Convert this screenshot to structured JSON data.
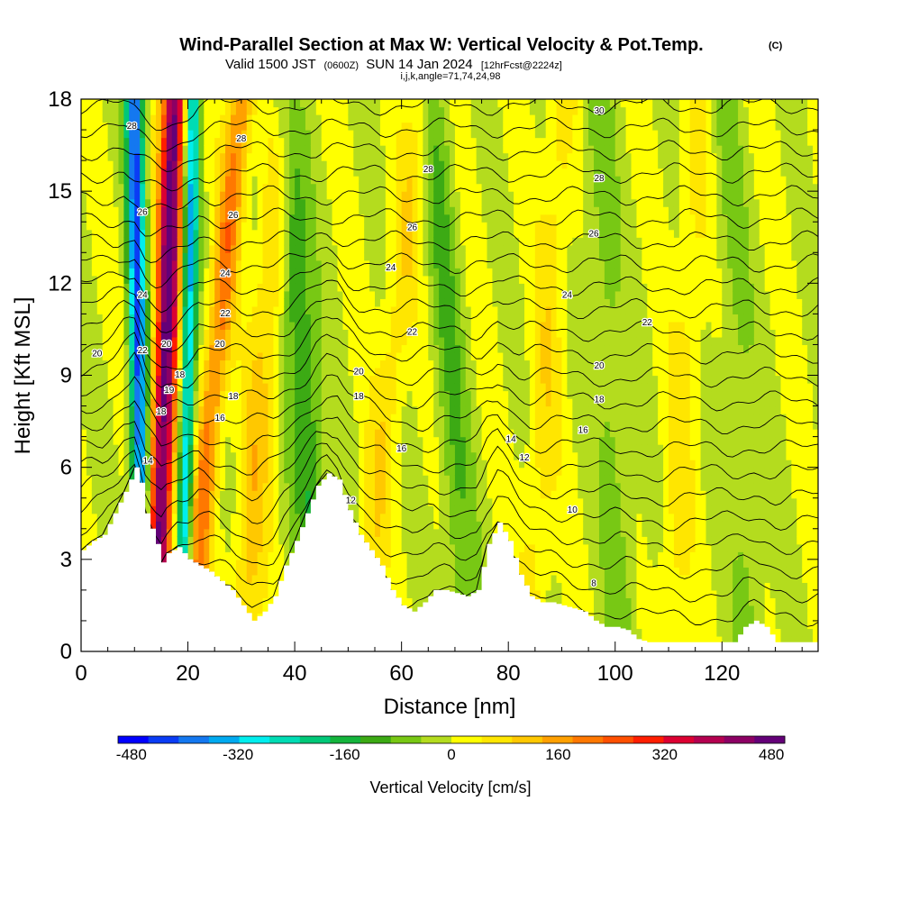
{
  "title": {
    "main": "Wind-Parallel Section at Max W: Vertical Velocity & Pot.Temp.",
    "main_suffix": "(C)",
    "valid_prefix": "Valid 1500 JST",
    "valid_utc": "(0600Z)",
    "valid_date": "SUN 14 Jan 2024",
    "forecast": "[12hrFcst@2224z]",
    "indices": "i,j,k,angle=71,74,24,98"
  },
  "chart_data": {
    "type": "heatmap",
    "xlabel": "Distance [nm]",
    "ylabel": "Height [Kft MSL]",
    "xlim": [
      0,
      138
    ],
    "ylim": [
      0,
      18
    ],
    "x_ticks": [
      0,
      20,
      40,
      60,
      80,
      100,
      120
    ],
    "y_ticks": [
      0,
      3,
      6,
      9,
      12,
      15,
      18
    ],
    "colorbar": {
      "label": "Vertical Velocity [cm/s]",
      "min": -500,
      "max": 500,
      "tick_labels": [
        "-480",
        "-320",
        "-160",
        "0",
        "160",
        "320",
        "480"
      ],
      "tick_values": [
        -480,
        -320,
        -160,
        0,
        160,
        320,
        480
      ],
      "colors": [
        "#0000ff",
        "#0a3cf5",
        "#1478f0",
        "#00aaf0",
        "#00eeee",
        "#00dcb4",
        "#00c878",
        "#14b43c",
        "#3caa14",
        "#78c814",
        "#b4dc1e",
        "#ffff00",
        "#ffe600",
        "#ffc800",
        "#ffa000",
        "#ff7800",
        "#ff5000",
        "#ff1e00",
        "#dc0032",
        "#b40050",
        "#8c0064",
        "#640078"
      ]
    },
    "terrain_profile": [
      [
        0,
        3.3
      ],
      [
        2,
        3.6
      ],
      [
        4,
        3.8
      ],
      [
        6,
        4.5
      ],
      [
        8,
        5.2
      ],
      [
        10,
        6.0
      ],
      [
        11,
        5.5
      ],
      [
        12,
        4.5
      ],
      [
        13,
        4.0
      ],
      [
        14,
        3.5
      ],
      [
        15,
        2.9
      ],
      [
        16,
        3.2
      ],
      [
        18,
        3.4
      ],
      [
        20,
        3.0
      ],
      [
        22,
        2.8
      ],
      [
        24,
        2.6
      ],
      [
        26,
        2.3
      ],
      [
        28,
        2.0
      ],
      [
        30,
        1.5
      ],
      [
        32,
        1.0
      ],
      [
        34,
        1.3
      ],
      [
        36,
        1.8
      ],
      [
        38,
        2.8
      ],
      [
        40,
        3.6
      ],
      [
        42,
        4.5
      ],
      [
        44,
        5.4
      ],
      [
        46,
        5.8
      ],
      [
        48,
        5.6
      ],
      [
        50,
        4.6
      ],
      [
        52,
        3.8
      ],
      [
        54,
        3.3
      ],
      [
        56,
        2.8
      ],
      [
        58,
        2.0
      ],
      [
        60,
        1.5
      ],
      [
        62,
        1.3
      ],
      [
        64,
        1.6
      ],
      [
        66,
        2.0
      ],
      [
        68,
        2.0
      ],
      [
        70,
        1.9
      ],
      [
        72,
        1.8
      ],
      [
        74,
        2.0
      ],
      [
        76,
        3.5
      ],
      [
        78,
        4.2
      ],
      [
        80,
        3.6
      ],
      [
        82,
        2.5
      ],
      [
        84,
        1.8
      ],
      [
        86,
        1.6
      ],
      [
        88,
        1.6
      ],
      [
        90,
        1.5
      ],
      [
        92,
        1.4
      ],
      [
        94,
        1.3
      ],
      [
        96,
        1.0
      ],
      [
        98,
        0.8
      ],
      [
        100,
        0.8
      ],
      [
        102,
        0.7
      ],
      [
        104,
        0.4
      ],
      [
        106,
        0.3
      ],
      [
        110,
        0.3
      ],
      [
        114,
        0.3
      ],
      [
        118,
        0.3
      ],
      [
        122,
        0.3
      ],
      [
        124,
        0.8
      ],
      [
        126,
        1.0
      ],
      [
        128,
        0.8
      ],
      [
        130,
        0.3
      ],
      [
        134,
        0.3
      ],
      [
        137,
        0.3
      ]
    ],
    "updrafts": [
      {
        "x_base": 14.0,
        "x_top": 17.5,
        "width": 2.2,
        "w": 480
      },
      {
        "x_base": 20.0,
        "x_top": 30.0,
        "width": 2.4,
        "w": 200
      },
      {
        "x_base": 30.0,
        "x_top": 38.0,
        "width": 3.0,
        "w": 110
      },
      {
        "x_base": 52.0,
        "x_top": 64.0,
        "width": 3.0,
        "w": 80
      },
      {
        "x_base": 84.0,
        "x_top": 90.0,
        "width": 3.0,
        "w": 70
      },
      {
        "x_base": 110.0,
        "x_top": 116.0,
        "width": 3.0,
        "w": 60
      }
    ],
    "downdrafts": [
      {
        "x_base": 11.5,
        "x_top": 10.0,
        "width": 1.6,
        "w": -420
      },
      {
        "x_base": 19.0,
        "x_top": 21.0,
        "width": 1.4,
        "w": -330
      },
      {
        "x_base": 45.0,
        "x_top": 38.0,
        "width": 3.0,
        "w": -150
      },
      {
        "x_base": 72.0,
        "x_top": 66.0,
        "width": 3.0,
        "w": -90
      },
      {
        "x_base": 102.0,
        "x_top": 96.0,
        "width": 3.0,
        "w": -70
      },
      {
        "x_base": 126.0,
        "x_top": 120.0,
        "width": 3.0,
        "w": -60
      }
    ],
    "theta_contours": {
      "levels": [
        8,
        9,
        10,
        11,
        12,
        13,
        14,
        15,
        16,
        17,
        18,
        19,
        20,
        21,
        22,
        23,
        24,
        25,
        26,
        27,
        28,
        29,
        30
      ],
      "labels": [
        {
          "x": 96,
          "y": 2.2,
          "text": "8"
        },
        {
          "x": 92,
          "y": 4.6,
          "text": "10"
        },
        {
          "x": 50.5,
          "y": 4.9,
          "text": "12"
        },
        {
          "x": 83,
          "y": 6.3,
          "text": "12"
        },
        {
          "x": 12.5,
          "y": 6.2,
          "text": "14"
        },
        {
          "x": 80.5,
          "y": 6.9,
          "text": "14"
        },
        {
          "x": 26,
          "y": 7.6,
          "text": "16"
        },
        {
          "x": 60,
          "y": 6.6,
          "text": "16"
        },
        {
          "x": 94,
          "y": 7.2,
          "text": "16"
        },
        {
          "x": 28.5,
          "y": 8.3,
          "text": "18"
        },
        {
          "x": 52,
          "y": 8.3,
          "text": "18"
        },
        {
          "x": 97,
          "y": 8.2,
          "text": "18"
        },
        {
          "x": 18.5,
          "y": 9.0,
          "text": "18"
        },
        {
          "x": 26,
          "y": 10.0,
          "text": "20"
        },
        {
          "x": 52,
          "y": 9.1,
          "text": "20"
        },
        {
          "x": 97,
          "y": 9.3,
          "text": "20"
        },
        {
          "x": 3,
          "y": 9.7,
          "text": "20"
        },
        {
          "x": 27,
          "y": 11.0,
          "text": "22"
        },
        {
          "x": 62,
          "y": 10.4,
          "text": "22"
        },
        {
          "x": 106,
          "y": 10.7,
          "text": "22"
        },
        {
          "x": 58,
          "y": 12.5,
          "text": "24"
        },
        {
          "x": 27,
          "y": 12.3,
          "text": "24"
        },
        {
          "x": 91,
          "y": 11.6,
          "text": "24"
        },
        {
          "x": 28.5,
          "y": 14.2,
          "text": "26"
        },
        {
          "x": 62,
          "y": 13.8,
          "text": "26"
        },
        {
          "x": 96,
          "y": 13.6,
          "text": "26"
        },
        {
          "x": 30,
          "y": 16.7,
          "text": "28"
        },
        {
          "x": 65,
          "y": 15.7,
          "text": "28"
        },
        {
          "x": 97,
          "y": 15.4,
          "text": "28"
        },
        {
          "x": 97,
          "y": 17.6,
          "text": "30"
        },
        {
          "x": 11.5,
          "y": 11.6,
          "text": "24"
        },
        {
          "x": 11.5,
          "y": 14.3,
          "text": "26"
        },
        {
          "x": 9.5,
          "y": 17.1,
          "text": "28"
        },
        {
          "x": 11.5,
          "y": 9.8,
          "text": "22"
        },
        {
          "x": 16,
          "y": 10.0,
          "text": "20"
        },
        {
          "x": 16.5,
          "y": 8.5,
          "text": "19"
        },
        {
          "x": 15,
          "y": 7.8,
          "text": "18"
        }
      ]
    }
  }
}
